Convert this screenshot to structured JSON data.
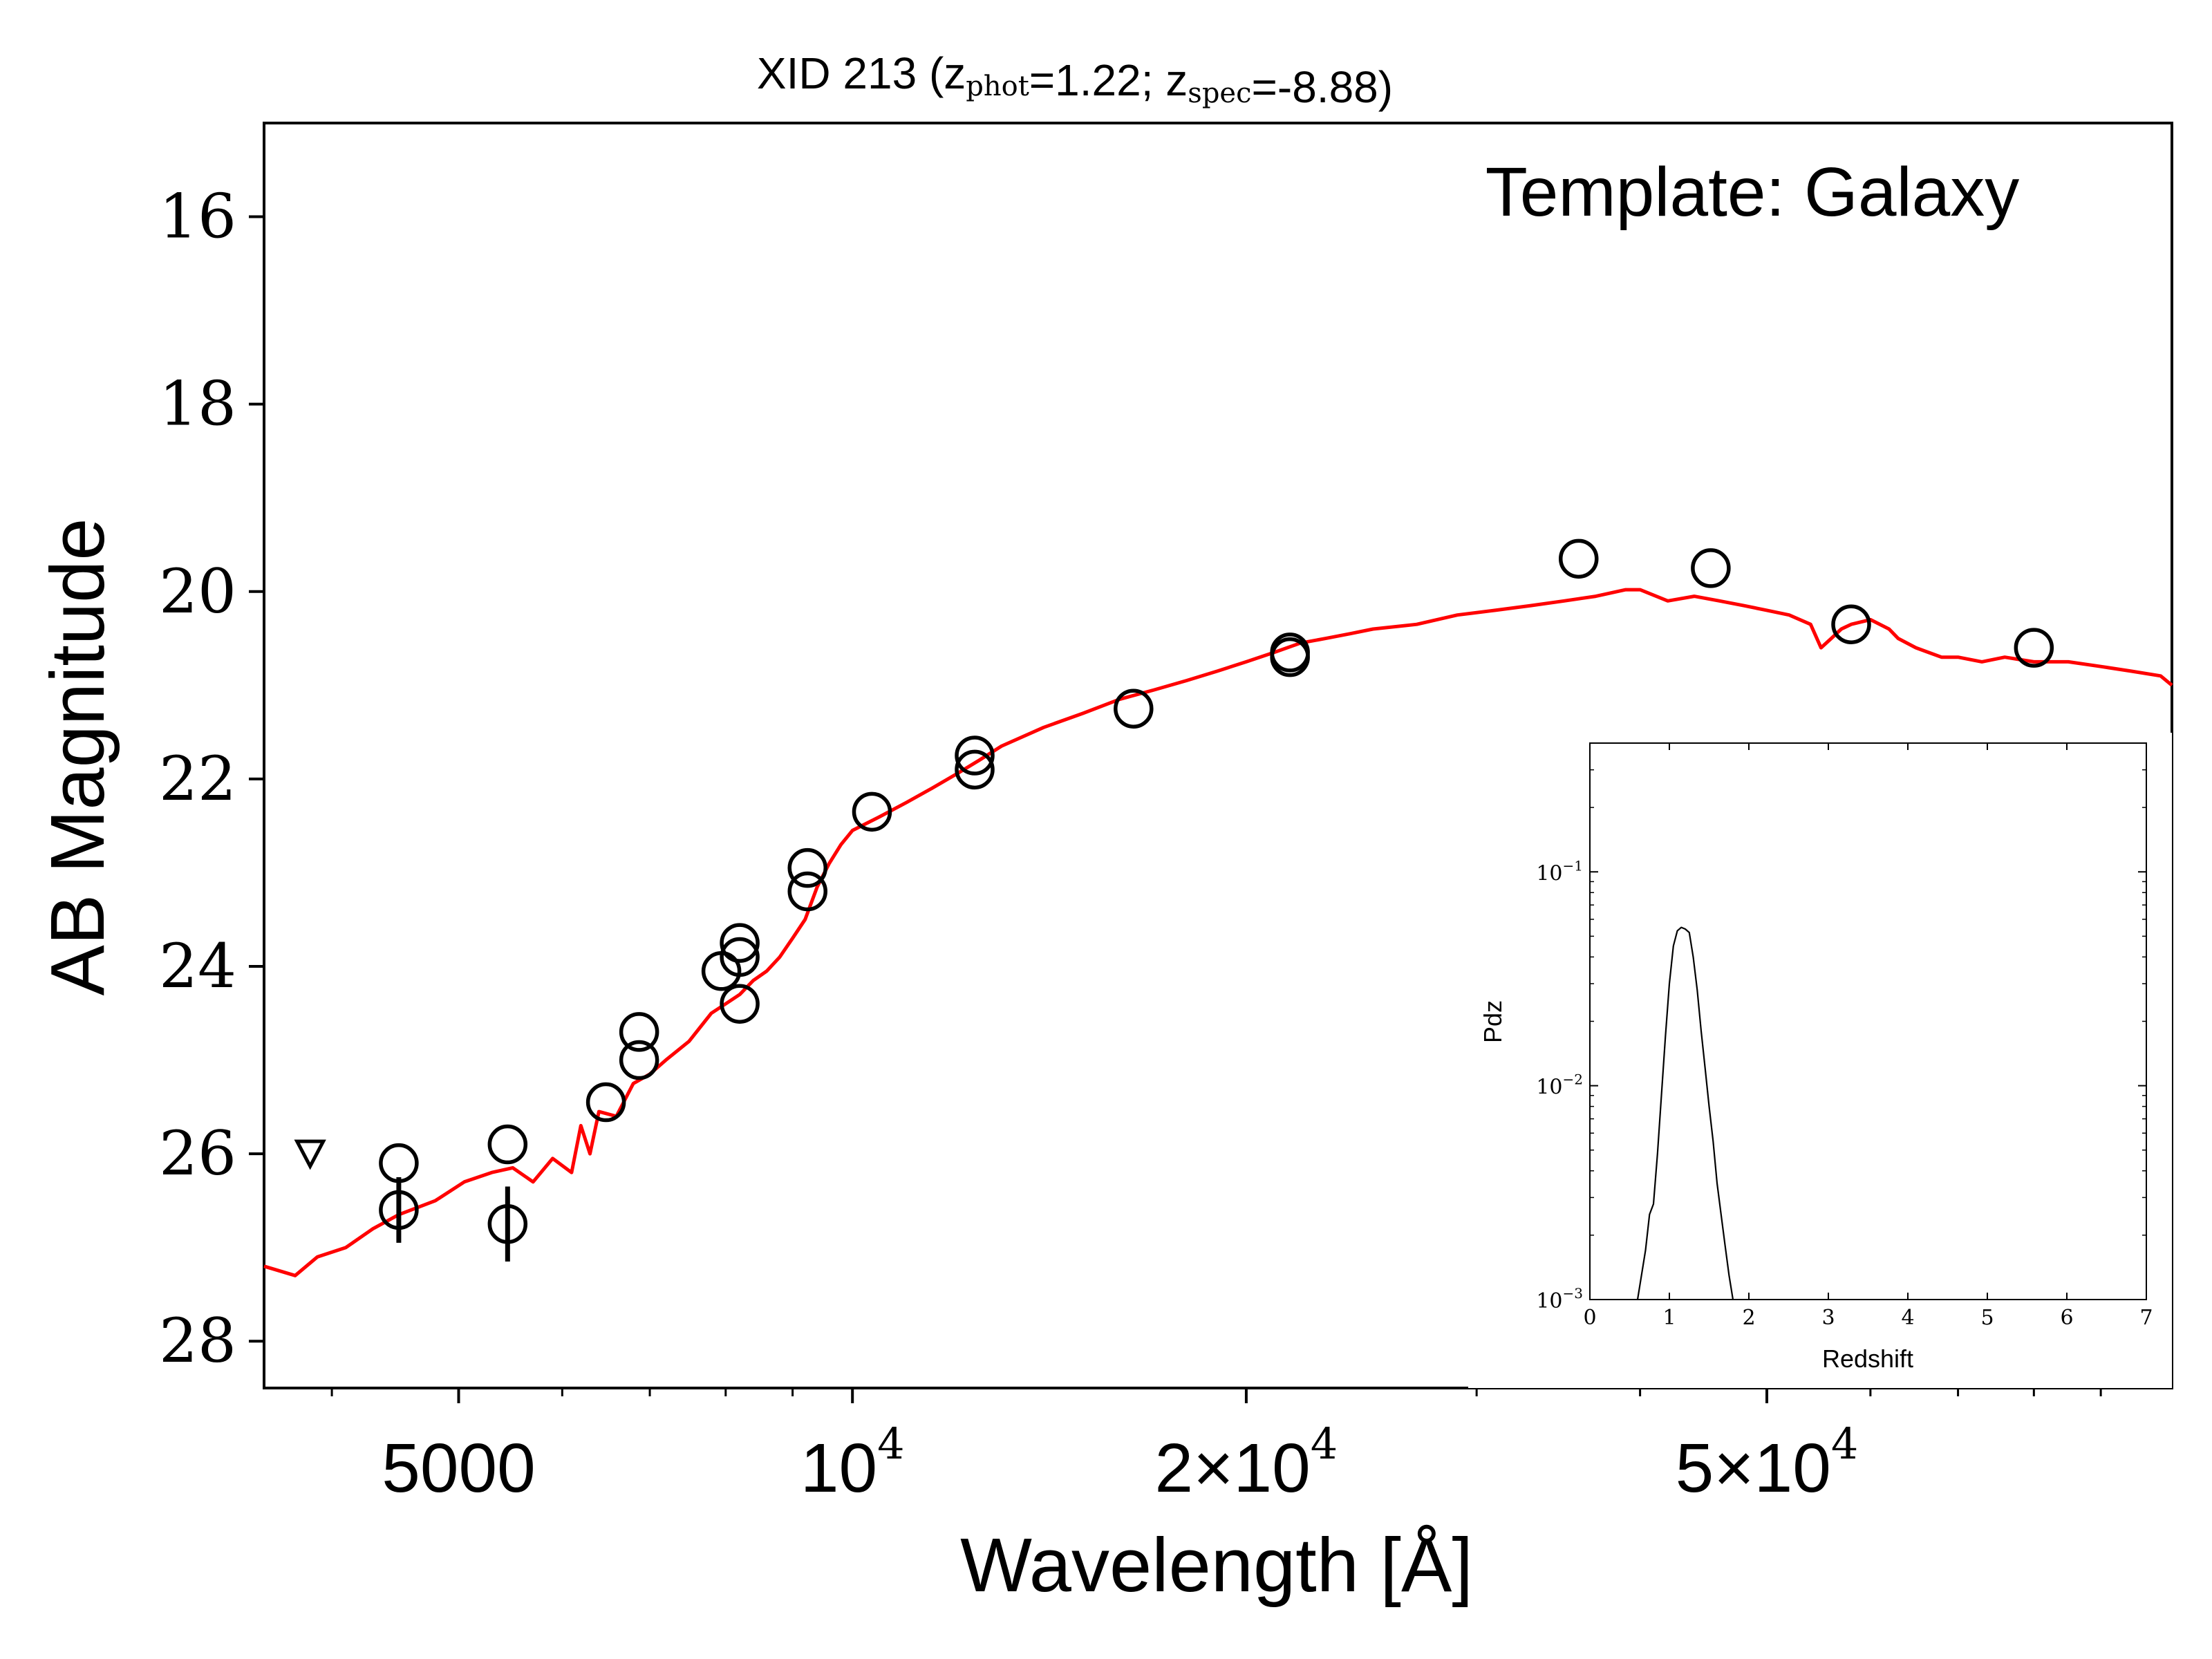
{
  "chart_data": [
    {
      "type": "scatter",
      "title": "XID 213 (z",
      "title_parts": [
        {
          "text": "XID 213 (z"
        },
        {
          "sub": "phot"
        },
        {
          "text": "=1.22; z"
        },
        {
          "sub": "spec"
        },
        {
          "text": "=-8.88)"
        }
      ],
      "xlabel": "Wavelength [Å]",
      "ylabel": "AB Magnitude",
      "x_scale": "log",
      "xlim": [
        3550,
        102000
      ],
      "ylim": [
        28.5,
        15.0
      ],
      "y_inverted": true,
      "grid": false,
      "annotation": "Template: Galaxy",
      "x_ticks": [
        {
          "value": 5000,
          "label": "5000",
          "sup": ""
        },
        {
          "value": 10000,
          "label": "10",
          "sup": "4"
        },
        {
          "value": 20000,
          "label": "2×10",
          "sup": "4"
        },
        {
          "value": 50000,
          "label": "5×10",
          "sup": "4"
        }
      ],
      "x_minor_ticks": [
        4000,
        6000,
        7000,
        8000,
        9000,
        30000,
        40000,
        60000,
        70000,
        80000,
        90000
      ],
      "y_ticks": [
        {
          "value": 16,
          "label": "16"
        },
        {
          "value": 18,
          "label": "18"
        },
        {
          "value": 20,
          "label": "20"
        },
        {
          "value": 22,
          "label": "22"
        },
        {
          "value": 24,
          "label": "24"
        },
        {
          "value": 26,
          "label": "26"
        },
        {
          "value": 28,
          "label": "28"
        }
      ],
      "series": [
        {
          "kind": "line",
          "color": "#ff0000",
          "x": [
            3550,
            3750,
            3900,
            4100,
            4300,
            4500,
            4800,
            5050,
            5300,
            5500,
            5700,
            5900,
            6100,
            6200,
            6300,
            6400,
            6600,
            6800,
            7000,
            7200,
            7500,
            7800,
            8000,
            8200,
            8400,
            8600,
            8800,
            9000,
            9200,
            9400,
            9600,
            9800,
            10000,
            10500,
            11000,
            11500,
            12000,
            12500,
            13000,
            14000,
            15000,
            16000,
            17000,
            18000,
            19000,
            20000,
            21000,
            22000,
            23000,
            24000,
            25000,
            27000,
            29000,
            31000,
            33000,
            35000,
            37000,
            39000,
            40000,
            42000,
            44000,
            46000,
            48000,
            50000,
            52000,
            54000,
            55000,
            56000,
            57000,
            58000,
            60000,
            62000,
            63000,
            65000,
            68000,
            70000,
            73000,
            76000,
            80000,
            85000,
            90000,
            95000,
            100000,
            102000
          ],
          "y": [
            27.2,
            27.3,
            27.1,
            27.0,
            26.8,
            26.65,
            26.5,
            26.3,
            26.2,
            26.15,
            26.3,
            26.05,
            26.2,
            25.7,
            26.0,
            25.55,
            25.6,
            25.25,
            25.15,
            25.0,
            24.8,
            24.5,
            24.4,
            24.3,
            24.15,
            24.05,
            23.9,
            23.7,
            23.5,
            23.15,
            22.9,
            22.7,
            22.55,
            22.4,
            22.25,
            22.1,
            21.95,
            21.8,
            21.65,
            21.45,
            21.3,
            21.15,
            21.05,
            20.95,
            20.85,
            20.75,
            20.65,
            20.55,
            20.5,
            20.45,
            20.4,
            20.35,
            20.25,
            20.2,
            20.15,
            20.1,
            20.05,
            19.98,
            19.98,
            20.1,
            20.05,
            20.1,
            20.15,
            20.2,
            20.25,
            20.35,
            20.6,
            20.5,
            20.4,
            20.35,
            20.3,
            20.4,
            20.5,
            20.6,
            20.7,
            20.7,
            20.75,
            20.7,
            20.75,
            20.75,
            20.8,
            20.85,
            20.9,
            21.0
          ]
        },
        {
          "kind": "points",
          "marker": "open-circle",
          "points": [
            {
              "x": 4500,
              "y": 26.1
            },
            {
              "x": 4500,
              "y": 26.6,
              "err": 0.35
            },
            {
              "x": 5450,
              "y": 25.9
            },
            {
              "x": 5450,
              "y": 26.75,
              "err": 0.4
            },
            {
              "x": 6480,
              "y": 25.45
            },
            {
              "x": 6870,
              "y": 24.7
            },
            {
              "x": 6870,
              "y": 25.0
            },
            {
              "x": 7940,
              "y": 24.05
            },
            {
              "x": 8200,
              "y": 23.75
            },
            {
              "x": 8200,
              "y": 23.9
            },
            {
              "x": 8200,
              "y": 24.4
            },
            {
              "x": 9240,
              "y": 22.95
            },
            {
              "x": 9240,
              "y": 23.2
            },
            {
              "x": 10350,
              "y": 22.35
            },
            {
              "x": 12400,
              "y": 21.75
            },
            {
              "x": 12400,
              "y": 21.9
            },
            {
              "x": 16400,
              "y": 21.25
            },
            {
              "x": 21600,
              "y": 20.65
            },
            {
              "x": 21600,
              "y": 20.7
            },
            {
              "x": 35900,
              "y": 19.65
            },
            {
              "x": 45300,
              "y": 19.75
            },
            {
              "x": 58000,
              "y": 20.35
            },
            {
              "x": 80000,
              "y": 20.6
            }
          ]
        },
        {
          "kind": "upper-limit",
          "marker": "open-triangle-down",
          "points": [
            {
              "x": 3850,
              "y": 26.0
            }
          ]
        }
      ]
    },
    {
      "type": "line",
      "xlabel": "Redshift",
      "ylabel": "Pdz",
      "x_scale": "linear",
      "y_scale": "log",
      "xlim": [
        0,
        7
      ],
      "ylim": [
        0.001,
        0.4
      ],
      "x_ticks": [
        "0",
        "1",
        "2",
        "3",
        "4",
        "5",
        "6",
        "7"
      ],
      "y_ticks": [
        {
          "value": 0.1,
          "base": "10",
          "sup": "−1"
        },
        {
          "value": 0.01,
          "base": "10",
          "sup": "−2"
        },
        {
          "value": 0.001,
          "base": "10",
          "sup": "−3"
        }
      ],
      "series": [
        {
          "color": "#000000",
          "x": [
            0.6,
            0.7,
            0.75,
            0.8,
            0.85,
            0.9,
            0.95,
            1.0,
            1.05,
            1.1,
            1.15,
            1.2,
            1.25,
            1.3,
            1.35,
            1.4,
            1.45,
            1.5,
            1.55,
            1.6,
            1.65,
            1.7,
            1.75,
            1.8
          ],
          "y": [
            0.001,
            0.0017,
            0.0025,
            0.0028,
            0.0048,
            0.009,
            0.017,
            0.03,
            0.045,
            0.053,
            0.055,
            0.054,
            0.052,
            0.04,
            0.028,
            0.018,
            0.012,
            0.008,
            0.0055,
            0.0035,
            0.0025,
            0.0018,
            0.0013,
            0.001
          ]
        }
      ]
    }
  ]
}
